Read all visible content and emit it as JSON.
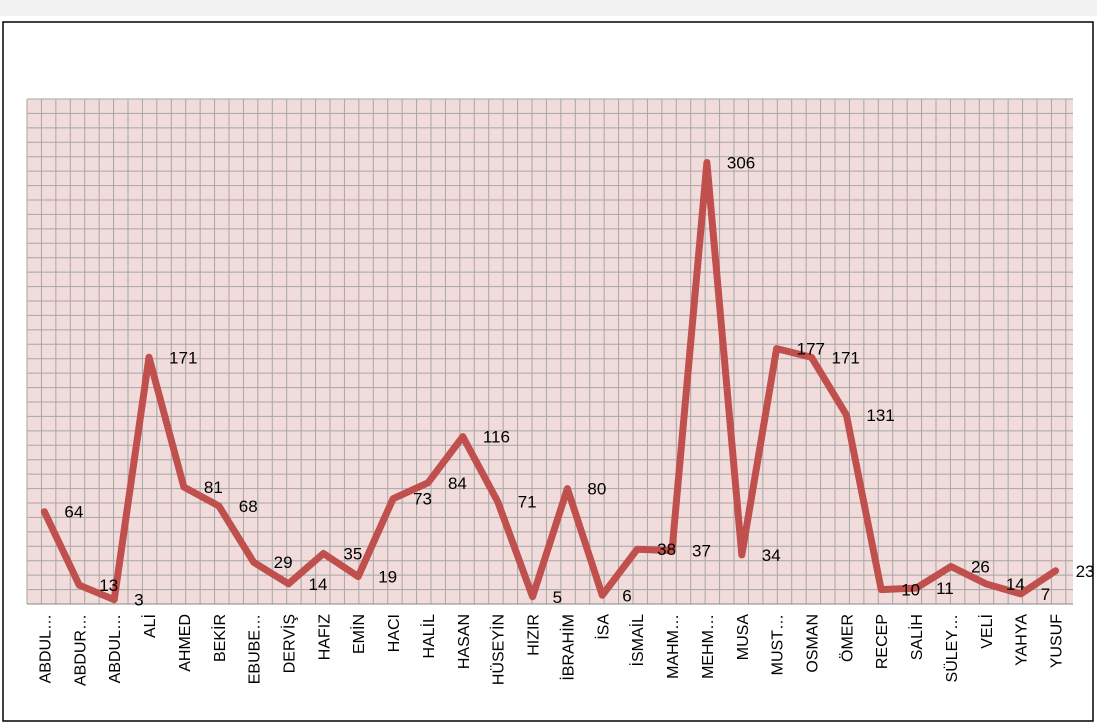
{
  "chart_data": {
    "type": "line",
    "categories": [
      "ABDUL…",
      "ABDUR…",
      "ABDUL…",
      "ALİ",
      "AHMED",
      "BEKİR",
      "EBUBE…",
      "DERVİŞ",
      "HAFIZ",
      "EMİN",
      "HACI",
      "HALİL",
      "HASAN",
      "HÜSEYİN",
      "HIZIR",
      "İBRAHİM",
      "İSA",
      "İSMAİL",
      "MAHM…",
      "MEHM…",
      "MUSA",
      "MUST…",
      "OSMAN",
      "ÖMER",
      "RECEP",
      "SALİH",
      "SÜLEY…",
      "VELİ",
      "YAHYA",
      "YUSUF"
    ],
    "values": [
      64,
      13,
      3,
      171,
      81,
      68,
      29,
      14,
      35,
      19,
      73,
      84,
      116,
      71,
      5,
      80,
      6,
      38,
      37,
      306,
      34,
      177,
      171,
      131,
      10,
      11,
      26,
      14,
      7,
      23
    ],
    "color": "#c0504d",
    "ylim": [
      0,
      350
    ],
    "yticks": [
      0,
      10,
      20,
      30,
      40,
      50,
      60,
      70,
      80,
      90,
      100,
      110,
      120,
      130,
      140,
      150,
      160,
      170,
      180,
      190,
      200,
      210,
      220,
      230,
      240,
      250,
      260,
      270,
      280,
      290,
      300,
      310,
      320,
      330,
      340,
      350
    ],
    "grid": true
  }
}
